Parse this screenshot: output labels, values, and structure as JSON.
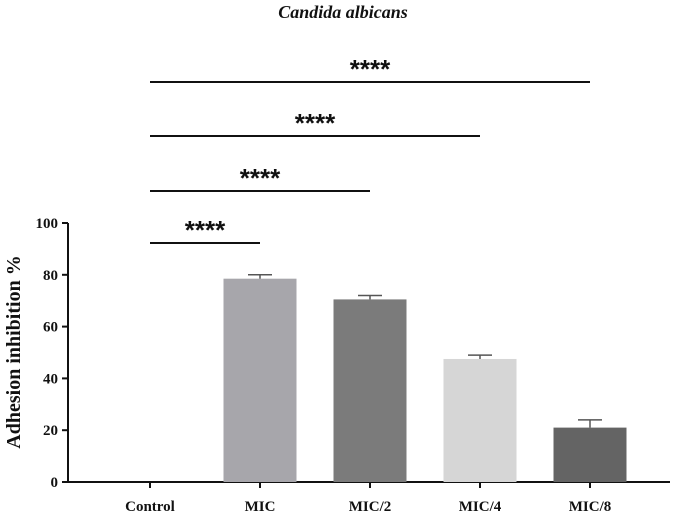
{
  "chart_data": {
    "type": "bar",
    "title": "Candida albicans",
    "ylabel": "Adhesion inhibition %",
    "xlabel": "",
    "categories": [
      "Control",
      "MIC",
      "MIC/2",
      "MIC/4",
      "MIC/8"
    ],
    "values": [
      0,
      78.5,
      70.5,
      47.5,
      21
    ],
    "errors": [
      0,
      1.5,
      1.5,
      1.5,
      3
    ],
    "colors": [
      "#ffffff",
      "#a7a6ab",
      "#7b7b7b",
      "#d6d6d6",
      "#646464"
    ],
    "ylim": [
      0,
      100
    ],
    "yticks": [
      0,
      20,
      40,
      60,
      80,
      100
    ],
    "grid": false,
    "significance": [
      {
        "from": "Control",
        "to": "MIC",
        "label": "****"
      },
      {
        "from": "Control",
        "to": "MIC/2",
        "label": "****"
      },
      {
        "from": "Control",
        "to": "MIC/4",
        "label": "****"
      },
      {
        "from": "Control",
        "to": "MIC/8",
        "label": "****"
      }
    ]
  }
}
